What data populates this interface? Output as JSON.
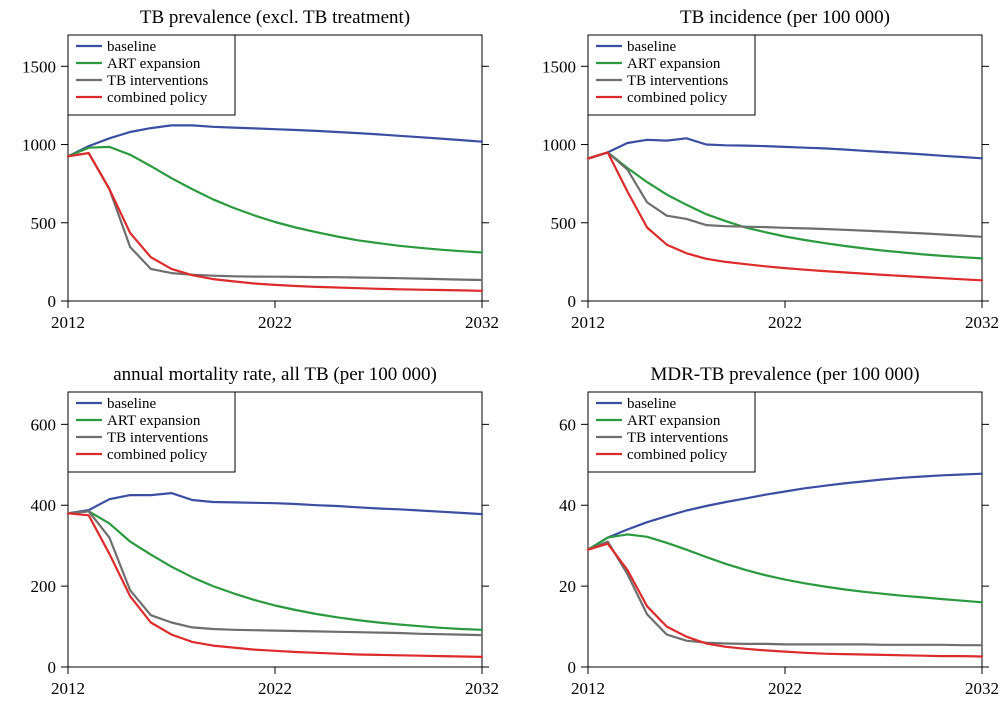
{
  "series_styles": [
    {
      "name": "baseline",
      "color": "#3a4fa3"
    },
    {
      "name": "ART expansion",
      "color": "#2b9a3e"
    },
    {
      "name": "TB interventions",
      "color": "#6e6e6e"
    },
    {
      "name": "combined policy",
      "color": "#dd2a2a"
    }
  ],
  "chart_data": [
    {
      "type": "line",
      "title": "TB prevalence (excl. TB treatment)",
      "xlabel": "",
      "ylabel": "",
      "xlim": [
        2012,
        2032
      ],
      "ylim": [
        0,
        1700
      ],
      "xticks": [
        2012,
        2022,
        2032
      ],
      "yticks": [
        0,
        500,
        1000,
        1500
      ],
      "grid": false,
      "legend": "top-left",
      "x": [
        2012,
        2013,
        2014,
        2015,
        2016,
        2017,
        2018,
        2019,
        2020,
        2021,
        2022,
        2023,
        2024,
        2025,
        2026,
        2027,
        2028,
        2029,
        2030,
        2031,
        2032
      ],
      "series": [
        {
          "name": "baseline",
          "values": [
            925,
            990,
            1040,
            1080,
            1105,
            1122,
            1122,
            1113,
            1108,
            1103,
            1098,
            1093,
            1087,
            1080,
            1073,
            1065,
            1056,
            1047,
            1038,
            1028,
            1018
          ]
        },
        {
          "name": "ART expansion",
          "values": [
            925,
            980,
            985,
            935,
            862,
            785,
            715,
            650,
            595,
            547,
            505,
            470,
            440,
            412,
            388,
            370,
            353,
            340,
            328,
            318,
            310
          ]
        },
        {
          "name": "TB interventions",
          "values": [
            925,
            945,
            715,
            345,
            205,
            178,
            168,
            162,
            158,
            156,
            155,
            154,
            153,
            152,
            150,
            148,
            146,
            143,
            140,
            137,
            134
          ]
        },
        {
          "name": "combined policy",
          "values": [
            925,
            945,
            715,
            435,
            280,
            205,
            165,
            140,
            125,
            112,
            103,
            96,
            90,
            86,
            82,
            78,
            75,
            72,
            70,
            68,
            65
          ]
        }
      ]
    },
    {
      "type": "line",
      "title": "TB incidence (per 100 000)",
      "xlabel": "",
      "ylabel": "",
      "xlim": [
        2012,
        2032
      ],
      "ylim": [
        0,
        1700
      ],
      "xticks": [
        2012,
        2022,
        2032
      ],
      "yticks": [
        0,
        500,
        1000,
        1500
      ],
      "grid": false,
      "legend": "top-left",
      "x": [
        2012,
        2013,
        2014,
        2015,
        2016,
        2017,
        2018,
        2019,
        2020,
        2021,
        2022,
        2023,
        2024,
        2025,
        2026,
        2027,
        2028,
        2029,
        2030,
        2031,
        2032
      ],
      "series": [
        {
          "name": "baseline",
          "values": [
            910,
            950,
            1010,
            1030,
            1025,
            1040,
            1000,
            995,
            993,
            990,
            985,
            980,
            975,
            968,
            960,
            952,
            945,
            937,
            928,
            920,
            912
          ]
        },
        {
          "name": "ART expansion",
          "values": [
            910,
            950,
            850,
            760,
            680,
            615,
            555,
            510,
            470,
            440,
            412,
            390,
            370,
            352,
            336,
            322,
            310,
            298,
            288,
            280,
            272
          ]
        },
        {
          "name": "TB interventions",
          "values": [
            910,
            950,
            840,
            630,
            545,
            525,
            485,
            478,
            475,
            472,
            468,
            464,
            460,
            455,
            450,
            444,
            438,
            432,
            425,
            418,
            410
          ]
        },
        {
          "name": "combined policy",
          "values": [
            910,
            950,
            700,
            470,
            360,
            305,
            270,
            250,
            235,
            222,
            210,
            200,
            191,
            183,
            175,
            167,
            160,
            153,
            146,
            139,
            132
          ]
        }
      ]
    },
    {
      "type": "line",
      "title": "annual mortality rate, all TB (per 100 000)",
      "xlabel": "",
      "ylabel": "",
      "xlim": [
        2012,
        2032
      ],
      "ylim": [
        0,
        680
      ],
      "xticks": [
        2012,
        2022,
        2032
      ],
      "yticks": [
        0,
        200,
        400,
        600
      ],
      "grid": false,
      "legend": "top-left",
      "x": [
        2012,
        2013,
        2014,
        2015,
        2016,
        2017,
        2018,
        2019,
        2020,
        2021,
        2022,
        2023,
        2024,
        2025,
        2026,
        2027,
        2028,
        2029,
        2030,
        2031,
        2032
      ],
      "series": [
        {
          "name": "baseline",
          "values": [
            380,
            388,
            415,
            425,
            425,
            430,
            413,
            408,
            407,
            406,
            405,
            403,
            400,
            398,
            395,
            392,
            390,
            387,
            384,
            381,
            378
          ]
        },
        {
          "name": "ART expansion",
          "values": [
            380,
            385,
            355,
            310,
            278,
            248,
            222,
            200,
            182,
            166,
            152,
            141,
            131,
            123,
            116,
            110,
            105,
            101,
            97,
            94,
            92
          ]
        },
        {
          "name": "TB interventions",
          "values": [
            380,
            385,
            320,
            190,
            128,
            110,
            98,
            94,
            92,
            91,
            90,
            89,
            88,
            87,
            86,
            85,
            84,
            82,
            81,
            80,
            79
          ]
        },
        {
          "name": "combined policy",
          "values": [
            380,
            375,
            280,
            175,
            110,
            80,
            62,
            53,
            48,
            43,
            40,
            37,
            35,
            33,
            31,
            30,
            29,
            28,
            27,
            26,
            25
          ]
        }
      ]
    },
    {
      "type": "line",
      "title": "MDR-TB prevalence (per 100 000)",
      "xlabel": "",
      "ylabel": "",
      "xlim": [
        2012,
        2032
      ],
      "ylim": [
        0,
        68
      ],
      "xticks": [
        2012,
        2022,
        2032
      ],
      "yticks": [
        0,
        20,
        40,
        60
      ],
      "grid": false,
      "legend": "top-left",
      "x": [
        2012,
        2013,
        2014,
        2015,
        2016,
        2017,
        2018,
        2019,
        2020,
        2021,
        2022,
        2023,
        2024,
        2025,
        2026,
        2027,
        2028,
        2029,
        2030,
        2031,
        2032
      ],
      "series": [
        {
          "name": "baseline",
          "values": [
            29,
            32,
            34,
            35.8,
            37.3,
            38.7,
            39.8,
            40.8,
            41.7,
            42.6,
            43.4,
            44.2,
            44.8,
            45.4,
            45.9,
            46.4,
            46.8,
            47.1,
            47.4,
            47.6,
            47.8
          ]
        },
        {
          "name": "ART expansion",
          "values": [
            29,
            32,
            32.8,
            32.2,
            30.7,
            29,
            27.2,
            25.5,
            24,
            22.7,
            21.6,
            20.7,
            19.9,
            19.2,
            18.6,
            18.1,
            17.6,
            17.2,
            16.8,
            16.4,
            16
          ]
        },
        {
          "name": "TB interventions",
          "values": [
            29,
            31,
            23,
            13,
            8,
            6.5,
            6,
            5.8,
            5.7,
            5.7,
            5.6,
            5.6,
            5.6,
            5.6,
            5.6,
            5.5,
            5.5,
            5.5,
            5.5,
            5.4,
            5.4
          ]
        },
        {
          "name": "combined policy",
          "values": [
            29,
            30.5,
            24,
            15,
            10,
            7.5,
            5.8,
            5,
            4.5,
            4.1,
            3.8,
            3.5,
            3.3,
            3.2,
            3.1,
            3,
            2.9,
            2.8,
            2.7,
            2.7,
            2.6
          ]
        }
      ]
    }
  ]
}
